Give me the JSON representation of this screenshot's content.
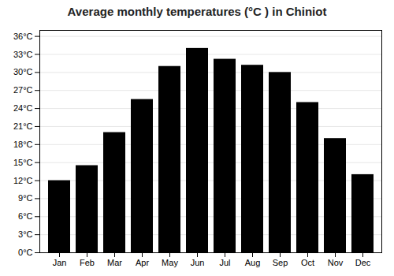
{
  "chart_data": {
    "type": "bar",
    "title": "Average monthly temperatures (°C ) in Chiniot",
    "categories": [
      "Jan",
      "Feb",
      "Mar",
      "Apr",
      "May",
      "Jun",
      "Jul",
      "Aug",
      "Sep",
      "Oct",
      "Nov",
      "Dec"
    ],
    "values": [
      12,
      14.5,
      20,
      25.5,
      31,
      34,
      32.2,
      31.2,
      30,
      25,
      19,
      13
    ],
    "ylim": [
      0,
      37
    ],
    "yticks": [
      {
        "value": 0,
        "label": "0°C"
      },
      {
        "value": 3,
        "label": "3°C"
      },
      {
        "value": 6,
        "label": "6°C"
      },
      {
        "value": 9,
        "label": "9°C"
      },
      {
        "value": 12,
        "label": "12°C"
      },
      {
        "value": 15,
        "label": "15°C"
      },
      {
        "value": 18,
        "label": "18°C"
      },
      {
        "value": 21,
        "label": "21°C"
      },
      {
        "value": 24,
        "label": "24°C"
      },
      {
        "value": 27,
        "label": "27°C"
      },
      {
        "value": 30,
        "label": "30°C"
      },
      {
        "value": 33,
        "label": "33°C"
      },
      {
        "value": 36,
        "label": "36°C"
      }
    ],
    "grid": true
  }
}
